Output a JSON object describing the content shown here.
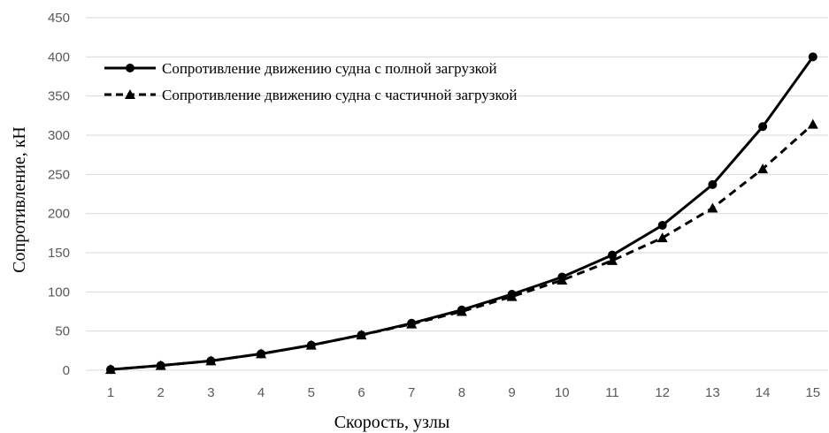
{
  "chart_data": {
    "type": "line",
    "title": "",
    "xlabel": "Скорость, узлы",
    "ylabel": "Сопротивление, кН",
    "x": [
      1,
      2,
      3,
      4,
      5,
      6,
      7,
      8,
      9,
      10,
      11,
      12,
      13,
      14,
      15
    ],
    "ylim": [
      0,
      450
    ],
    "yticks": [
      0,
      50,
      100,
      150,
      200,
      250,
      300,
      350,
      400,
      450
    ],
    "grid": true,
    "legend_position": "top-left",
    "series": [
      {
        "name": "Сопротивление движению судна с полной загрузкой",
        "marker": "circle",
        "line_style": "solid",
        "color": "#000000",
        "values": [
          1,
          6,
          12,
          21,
          32,
          45,
          60,
          77,
          97,
          119,
          147,
          185,
          237,
          311,
          400
        ]
      },
      {
        "name": "Сопротивление движению судна с частичной загрузкой",
        "marker": "triangle",
        "line_style": "dashed",
        "color": "#000000",
        "values": [
          1,
          6,
          12,
          21,
          32,
          45,
          59,
          75,
          94,
          115,
          140,
          169,
          207,
          257,
          314
        ]
      }
    ]
  }
}
